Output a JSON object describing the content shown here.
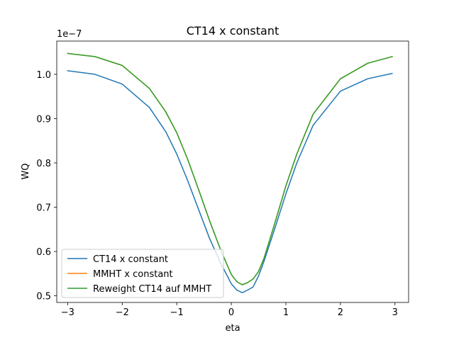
{
  "chart_data": {
    "type": "line",
    "title": "CT14 x constant",
    "xlabel": "eta",
    "ylabel": "WQ",
    "offset_label": "1e−7",
    "xlim": [
      -3.2,
      3.25
    ],
    "ylim": [
      0.485,
      1.075
    ],
    "xticks": [
      -3,
      -2,
      -1,
      0,
      1,
      2,
      3
    ],
    "xtick_labels": [
      "−3",
      "−2",
      "−1",
      "0",
      "1",
      "2",
      "3"
    ],
    "yticks": [
      0.5,
      0.6,
      0.7,
      0.8,
      0.9,
      1.0
    ],
    "ytick_labels": [
      "0.5",
      "0.6",
      "0.7",
      "0.8",
      "0.9",
      "1.0"
    ],
    "grid": false,
    "legend_position": "lower-left",
    "x": [
      -3.0,
      -2.5,
      -2.0,
      -1.5,
      -1.2,
      -1.0,
      -0.8,
      -0.6,
      -0.4,
      -0.2,
      0.0,
      0.1,
      0.2,
      0.3,
      0.4,
      0.5,
      0.6,
      0.8,
      1.0,
      1.2,
      1.5,
      2.0,
      2.5,
      2.95
    ],
    "series": [
      {
        "name": "CT14 x constant",
        "color": "#1f77b4",
        "values": [
          1.008,
          1.0,
          0.978,
          0.925,
          0.87,
          0.82,
          0.76,
          0.695,
          0.63,
          0.575,
          0.527,
          0.513,
          0.507,
          0.513,
          0.52,
          0.545,
          0.578,
          0.653,
          0.73,
          0.8,
          0.885,
          0.962,
          0.99,
          1.002
        ]
      },
      {
        "name": "MMHT x constant",
        "color": "#ff7f0e",
        "values": [
          1.047,
          1.04,
          1.02,
          0.968,
          0.915,
          0.868,
          0.808,
          0.74,
          0.67,
          0.605,
          0.548,
          0.532,
          0.525,
          0.53,
          0.538,
          0.555,
          0.585,
          0.665,
          0.748,
          0.82,
          0.91,
          0.99,
          1.025,
          1.04
        ]
      },
      {
        "name": "Reweight CT14 auf MMHT",
        "color": "#2ca02c",
        "values": [
          1.047,
          1.04,
          1.02,
          0.968,
          0.915,
          0.868,
          0.808,
          0.74,
          0.67,
          0.605,
          0.548,
          0.532,
          0.525,
          0.53,
          0.538,
          0.555,
          0.585,
          0.665,
          0.748,
          0.82,
          0.91,
          0.99,
          1.025,
          1.04
        ]
      }
    ]
  }
}
